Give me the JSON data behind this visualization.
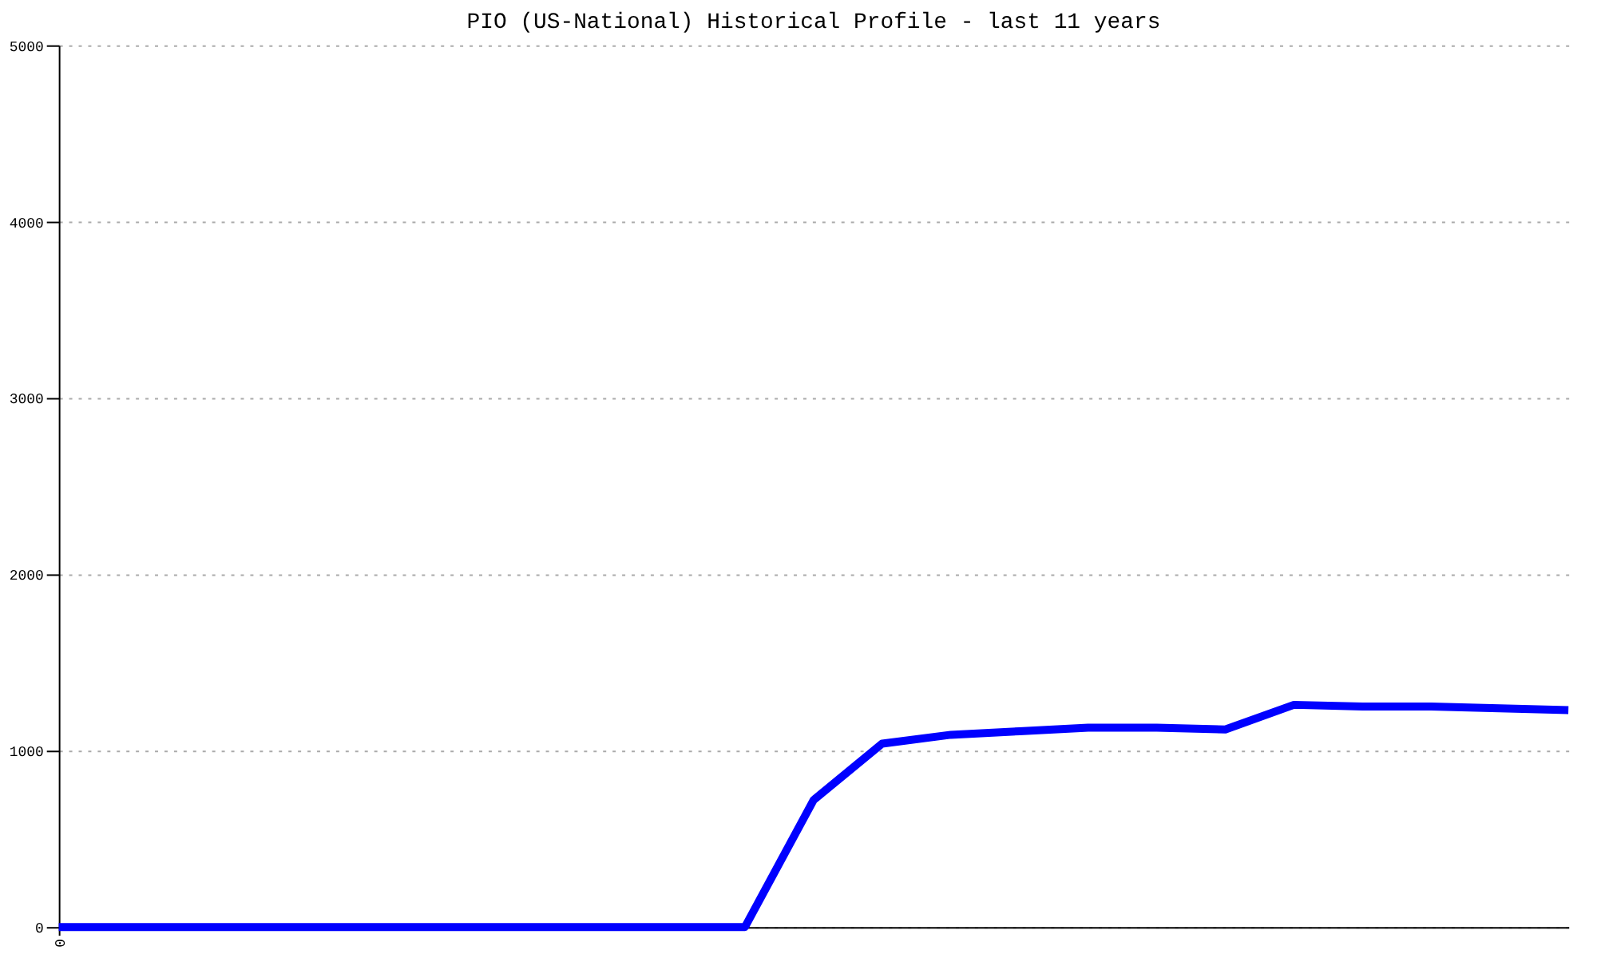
{
  "chart_data": {
    "type": "line",
    "title": "PIO (US-National) Historical Profile - last 11 years",
    "categories": [
      "0",
      null,
      null,
      null,
      null,
      null,
      null,
      null,
      null,
      null,
      null,
      null,
      null,
      null,
      null,
      null,
      null,
      null,
      null,
      null,
      null,
      null,
      null
    ],
    "series": [
      {
        "color": "#0000ff",
        "values": [
          0,
          0,
          0,
          0,
          0,
          0,
          0,
          0,
          0,
          0,
          0,
          720,
          1040,
          1090,
          1110,
          1130,
          1130,
          1120,
          1260,
          1250,
          1250,
          1240,
          1230
        ]
      }
    ],
    "ylim": [
      0,
      5000
    ],
    "yticks": [
      0,
      1000,
      2000,
      3000,
      4000,
      5000
    ],
    "grid": "y",
    "marker": "none",
    "line_style": "solid"
  }
}
